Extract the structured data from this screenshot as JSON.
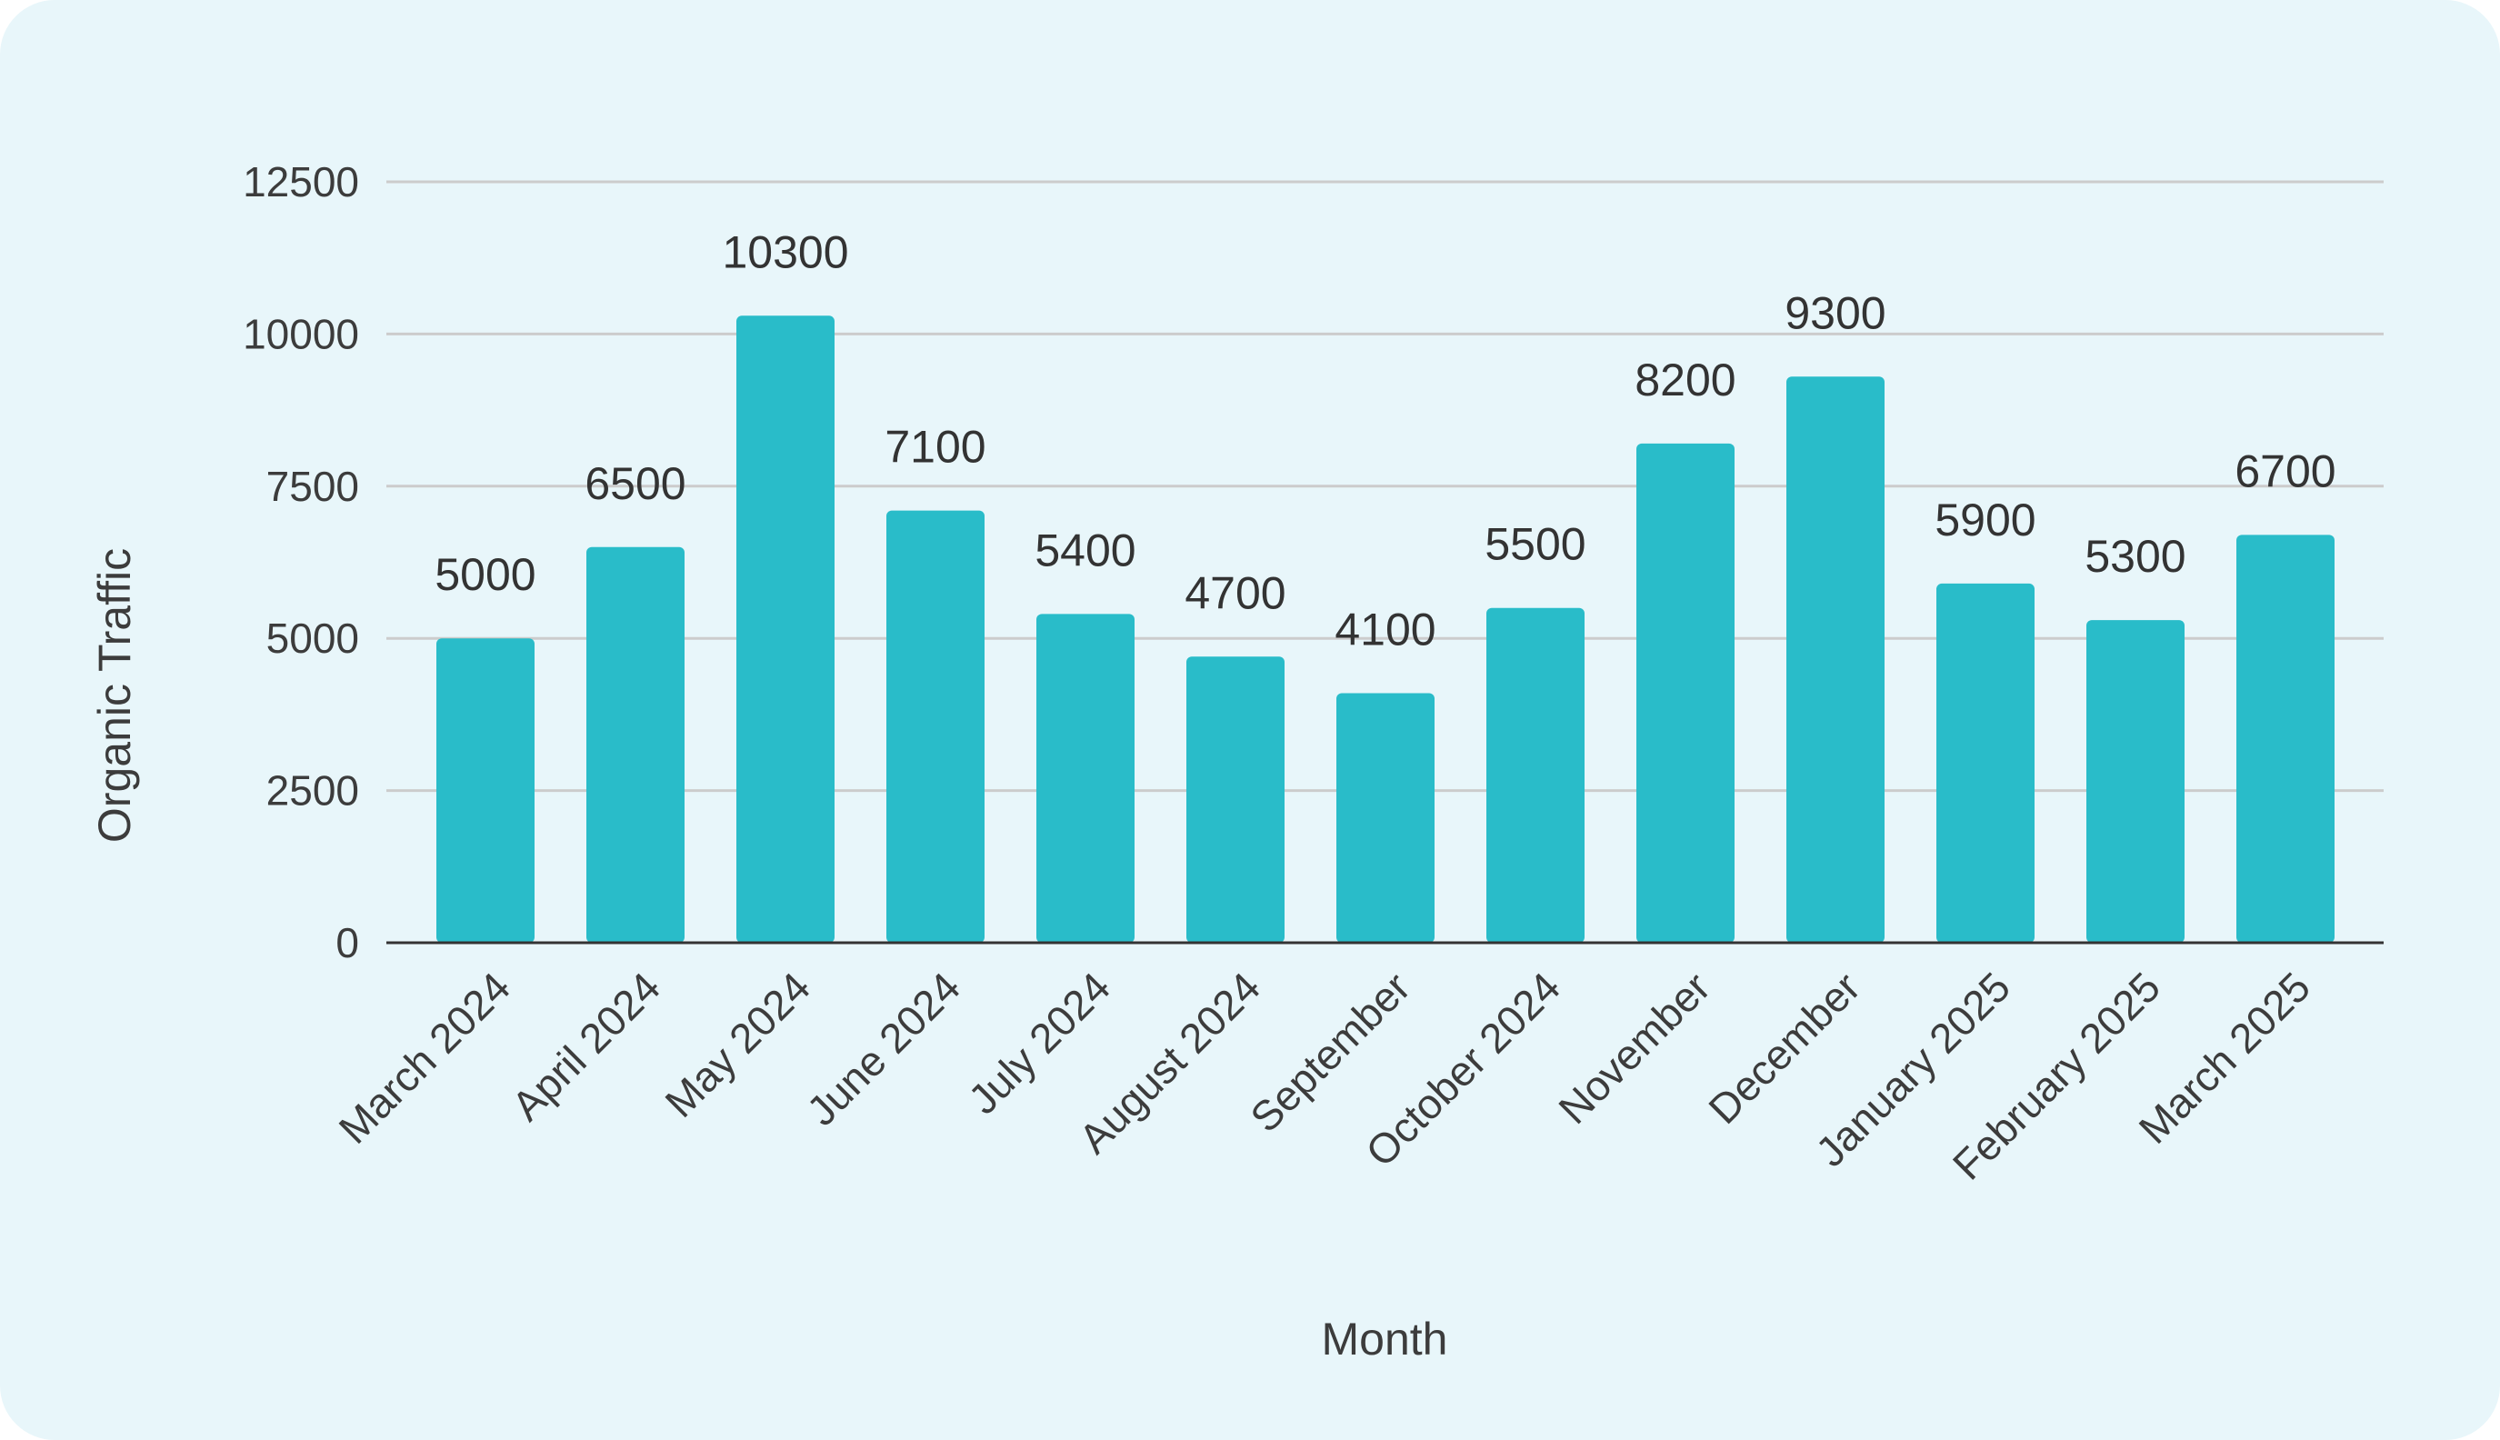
{
  "chart_data": {
    "type": "bar",
    "title": "",
    "xlabel": "Month",
    "ylabel": "Organic Traffic",
    "categories": [
      "March 2024",
      "April 2024",
      "May 2024",
      "June 2024",
      "July 2024",
      "August 2024",
      "September",
      "October 2024",
      "November",
      "December",
      "January 2025",
      "February 2025",
      "March 2025"
    ],
    "values": [
      5000,
      6500,
      10300,
      7100,
      5400,
      4700,
      4100,
      5500,
      8200,
      9300,
      5900,
      5300,
      6700
    ],
    "ylim": [
      0,
      12500
    ],
    "yticks": [
      0,
      2500,
      5000,
      7500,
      10000,
      12500
    ],
    "grid": true,
    "legend": "none",
    "data_labels": true,
    "colors": {
      "bar": "#29bcc9",
      "grid": "#cccccc",
      "axis": "#333333",
      "background": "#e8f6fa"
    }
  }
}
